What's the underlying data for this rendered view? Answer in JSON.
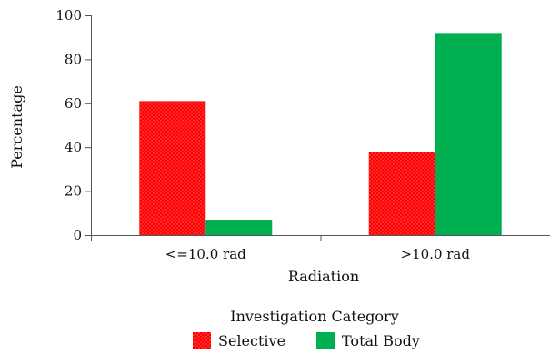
{
  "chart_data": {
    "type": "bar",
    "title": "",
    "xlabel": "Radiation",
    "ylabel": "Percentage",
    "ylim": [
      0,
      100
    ],
    "yticks": [
      0,
      20,
      40,
      60,
      80,
      100
    ],
    "grid": false,
    "categories": [
      "<=10.0 rad",
      ">10.0 rad"
    ],
    "series": [
      {
        "name": "Selective",
        "values": [
          61,
          38
        ],
        "color": "#ff0000",
        "pattern": "dotted"
      },
      {
        "name": "Total Body",
        "values": [
          7,
          92
        ],
        "color": "#00b050"
      }
    ],
    "legend": {
      "title": "Investigation Category",
      "placement": "bottom"
    }
  }
}
